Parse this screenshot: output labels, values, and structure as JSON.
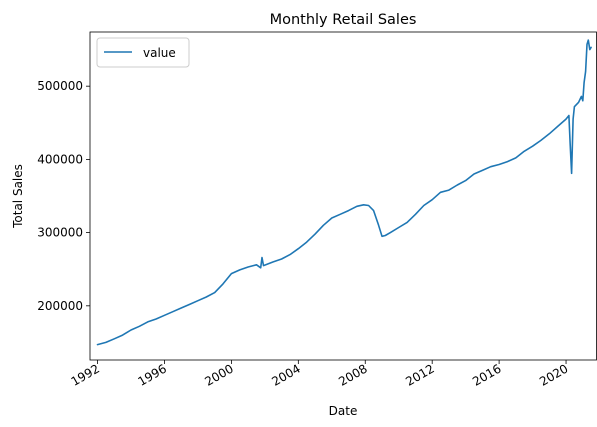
{
  "chart_data": {
    "type": "line",
    "title": "Monthly Retail Sales",
    "xlabel": "Date",
    "ylabel": "Total Sales",
    "xlim": [
      1991.55,
      2021.85
    ],
    "ylim": [
      126000,
      574000
    ],
    "x_ticks": [
      1992,
      1996,
      2000,
      2004,
      2008,
      2012,
      2016,
      2020
    ],
    "x_tick_labels": [
      "1992",
      "1996",
      "2000",
      "2004",
      "2008",
      "2012",
      "2016",
      "2020"
    ],
    "y_ticks": [
      200000,
      300000,
      400000,
      500000
    ],
    "y_tick_labels": [
      "200000",
      "300000",
      "400000",
      "500000"
    ],
    "grid": false,
    "legend_position": "top-left",
    "series": [
      {
        "name": "value",
        "color": "#1f77b4",
        "x": [
          1992.0,
          1992.5,
          1993.0,
          1993.5,
          1994.0,
          1994.5,
          1995.0,
          1995.5,
          1996.0,
          1996.5,
          1997.0,
          1997.5,
          1998.0,
          1998.5,
          1999.0,
          1999.5,
          2000.0,
          2000.5,
          2001.0,
          2001.5,
          2001.75,
          2001.83,
          2001.92,
          2002.5,
          2003.0,
          2003.5,
          2004.0,
          2004.5,
          2005.0,
          2005.5,
          2006.0,
          2006.5,
          2007.0,
          2007.5,
          2007.9,
          2008.2,
          2008.5,
          2008.8,
          2009.0,
          2009.2,
          2009.5,
          2010.0,
          2010.5,
          2011.0,
          2011.5,
          2012.0,
          2012.5,
          2013.0,
          2013.5,
          2014.0,
          2014.5,
          2015.0,
          2015.5,
          2016.0,
          2016.5,
          2017.0,
          2017.5,
          2018.0,
          2018.5,
          2019.0,
          2019.5,
          2020.0,
          2020.17,
          2020.25,
          2020.33,
          2020.42,
          2020.5,
          2020.75,
          2020.92,
          2021.0,
          2021.08,
          2021.17,
          2021.25,
          2021.33,
          2021.42,
          2021.5
        ],
        "values": [
          147000,
          150000,
          155000,
          160000,
          167000,
          172000,
          178000,
          182000,
          187000,
          192000,
          197000,
          202000,
          207000,
          212000,
          218000,
          230000,
          244000,
          249000,
          253000,
          256000,
          252000,
          266000,
          255000,
          260000,
          264000,
          270000,
          278000,
          287000,
          298000,
          310000,
          320000,
          325000,
          330000,
          336000,
          338000,
          337000,
          330000,
          310000,
          295000,
          296000,
          300000,
          307000,
          314000,
          325000,
          337000,
          345000,
          355000,
          358000,
          365000,
          371000,
          380000,
          385000,
          390000,
          393000,
          397000,
          402000,
          411000,
          418000,
          426000,
          435000,
          445000,
          455000,
          460000,
          420000,
          381000,
          455000,
          472000,
          478000,
          486000,
          480000,
          505000,
          520000,
          557000,
          563000,
          550000,
          553000
        ]
      }
    ]
  }
}
